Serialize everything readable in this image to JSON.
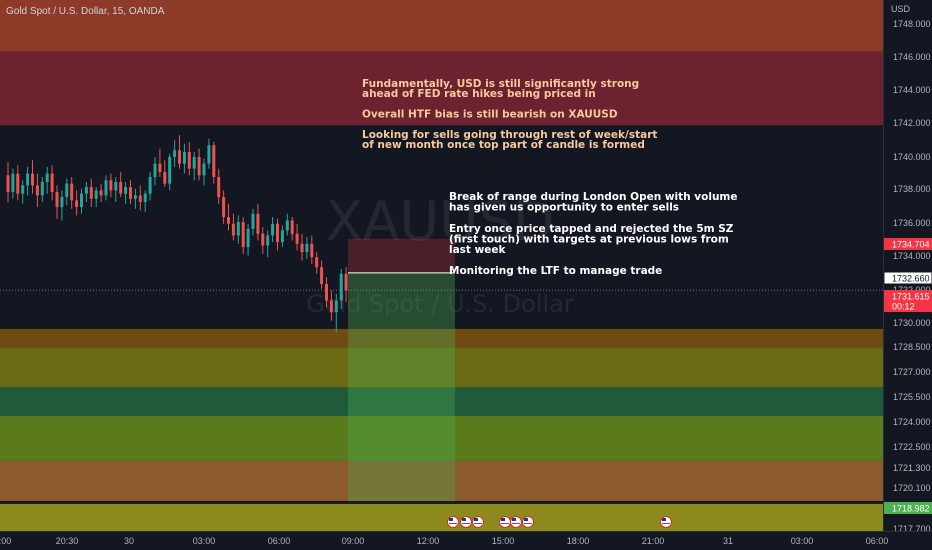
{
  "header": {
    "title": "Gold Spot / U.S. Dollar, 15, OANDA",
    "currency": "USD"
  },
  "watermark": {
    "symbol": "XAUUSD",
    "name": "Gold Spot / U.S. Dollar"
  },
  "price_scale": {
    "ticks": [
      "1748.000",
      "1746.000",
      "1744.000",
      "1742.000",
      "1740.000",
      "1738.000",
      "1736.000",
      "1734.000",
      "1732.000",
      "1730.000",
      "1728.500",
      "1727.000",
      "1725.500",
      "1724.000",
      "1722.500",
      "1721.300",
      "1720.100",
      "1717.700"
    ],
    "labels": [
      {
        "text": "1734.704",
        "color": "#f23645"
      },
      {
        "text": "1732.660",
        "color": "#ffffff"
      },
      {
        "text": "1731.615",
        "sub": "00:12",
        "color": "#f23645"
      },
      {
        "text": "1718.982",
        "color": "#4caf50"
      }
    ]
  },
  "time_axis": {
    "labels": [
      "18:00",
      "20:30",
      "30",
      "03:00",
      "06:00",
      "09:00",
      "12:00",
      "15:00",
      "18:00",
      "21:00",
      "31",
      "03:00",
      "06:00"
    ]
  },
  "annotations": {
    "fundamental": [
      "Fundamentally, USD is still significantly strong",
      "ahead of FED rate hikes being priced in",
      "",
      "Overall HTF bias is still bearish on XAUUSD",
      "",
      "Looking for sells going through rest of week/start",
      "of new month once top part of candle is formed"
    ],
    "entry": [
      "Break of range during London Open with volume",
      "has given us opportunity to enter sells",
      "",
      "Entry once price tapped and rejected the 5m SZ",
      "(first touch) with targets at previous lows from",
      "last week",
      "",
      "Monitoring the LTF to manage trade"
    ]
  },
  "colors": {
    "background": "#131722",
    "bull": "#26a69a",
    "bear": "#ef5350",
    "annotation_text": "#f7c99c",
    "entry_text": "#ffffff"
  },
  "chart_data": {
    "type": "candlestick",
    "title": "Gold Spot / U.S. Dollar, 15, OANDA",
    "price_range": [
      1717.2,
      1749.0
    ],
    "ohlc": [
      [
        1738.5,
        1739.3,
        1736.9,
        1737.5
      ],
      [
        1737.5,
        1738.9,
        1737.1,
        1738.6
      ],
      [
        1738.6,
        1739.1,
        1737.0,
        1737.4
      ],
      [
        1737.4,
        1738.2,
        1736.8,
        1737.9
      ],
      [
        1737.9,
        1739.0,
        1737.3,
        1738.6
      ],
      [
        1738.6,
        1739.4,
        1737.4,
        1737.9
      ],
      [
        1737.9,
        1738.6,
        1736.6,
        1737.3
      ],
      [
        1737.3,
        1738.4,
        1736.9,
        1738.1
      ],
      [
        1738.1,
        1739.0,
        1737.4,
        1738.6
      ],
      [
        1738.6,
        1739.1,
        1737.0,
        1737.5
      ],
      [
        1737.5,
        1737.9,
        1735.9,
        1736.6
      ],
      [
        1736.6,
        1737.6,
        1735.8,
        1737.2
      ],
      [
        1737.2,
        1738.3,
        1736.7,
        1738.0
      ],
      [
        1738.0,
        1738.4,
        1736.5,
        1737.0
      ],
      [
        1737.0,
        1737.6,
        1736.1,
        1736.6
      ],
      [
        1736.6,
        1737.7,
        1736.2,
        1737.4
      ],
      [
        1737.4,
        1738.1,
        1736.9,
        1737.8
      ],
      [
        1737.8,
        1738.3,
        1736.6,
        1737.1
      ],
      [
        1737.1,
        1737.8,
        1736.6,
        1737.6
      ],
      [
        1737.6,
        1738.0,
        1736.9,
        1737.3
      ],
      [
        1737.3,
        1738.5,
        1737.0,
        1738.2
      ],
      [
        1738.2,
        1738.6,
        1737.2,
        1737.6
      ],
      [
        1737.6,
        1738.4,
        1736.9,
        1738.1
      ],
      [
        1738.1,
        1738.7,
        1737.2,
        1737.4
      ],
      [
        1737.4,
        1738.1,
        1736.8,
        1737.8
      ],
      [
        1737.8,
        1738.2,
        1736.8,
        1737.1
      ],
      [
        1737.1,
        1737.7,
        1736.5,
        1737.3
      ],
      [
        1737.3,
        1737.9,
        1736.4,
        1736.9
      ],
      [
        1736.9,
        1737.6,
        1736.3,
        1737.4
      ],
      [
        1737.4,
        1738.7,
        1737.0,
        1738.4
      ],
      [
        1738.4,
        1739.6,
        1737.9,
        1739.2
      ],
      [
        1739.2,
        1740.1,
        1738.4,
        1738.7
      ],
      [
        1738.7,
        1739.4,
        1737.8,
        1738.0
      ],
      [
        1738.0,
        1739.8,
        1737.6,
        1739.6
      ],
      [
        1739.6,
        1740.6,
        1739.0,
        1740.0
      ],
      [
        1740.0,
        1740.9,
        1738.9,
        1739.2
      ],
      [
        1739.2,
        1740.4,
        1738.6,
        1739.9
      ],
      [
        1739.9,
        1740.5,
        1738.5,
        1738.9
      ],
      [
        1738.9,
        1739.9,
        1738.2,
        1739.6
      ],
      [
        1739.6,
        1740.1,
        1738.2,
        1738.5
      ],
      [
        1738.5,
        1739.5,
        1737.9,
        1739.2
      ],
      [
        1739.2,
        1740.7,
        1738.9,
        1740.3
      ],
      [
        1740.3,
        1740.5,
        1738.0,
        1738.4
      ],
      [
        1738.4,
        1738.9,
        1736.8,
        1737.2
      ],
      [
        1737.2,
        1737.6,
        1735.6,
        1736.0
      ],
      [
        1736.0,
        1736.8,
        1735.2,
        1735.6
      ],
      [
        1735.6,
        1736.2,
        1734.6,
        1734.9
      ],
      [
        1734.9,
        1736.1,
        1734.4,
        1735.7
      ],
      [
        1735.7,
        1736.0,
        1733.8,
        1734.2
      ],
      [
        1734.2,
        1735.6,
        1733.7,
        1735.3
      ],
      [
        1735.3,
        1736.5,
        1734.9,
        1736.2
      ],
      [
        1736.2,
        1736.8,
        1734.6,
        1735.0
      ],
      [
        1735.0,
        1735.4,
        1733.8,
        1734.3
      ],
      [
        1734.3,
        1735.2,
        1733.6,
        1734.9
      ],
      [
        1734.9,
        1736.0,
        1734.5,
        1735.6
      ],
      [
        1735.6,
        1735.9,
        1734.0,
        1734.5
      ],
      [
        1734.5,
        1735.5,
        1734.2,
        1735.2
      ],
      [
        1735.2,
        1736.2,
        1734.9,
        1735.8
      ],
      [
        1735.8,
        1736.0,
        1734.6,
        1735.0
      ],
      [
        1735.0,
        1735.6,
        1734.0,
        1734.4
      ],
      [
        1734.4,
        1735.0,
        1733.4,
        1733.9
      ],
      [
        1733.9,
        1734.8,
        1733.5,
        1734.4
      ],
      [
        1734.4,
        1734.9,
        1733.2,
        1733.6
      ],
      [
        1733.6,
        1733.9,
        1732.6,
        1733.0
      ],
      [
        1733.0,
        1733.4,
        1731.7,
        1732.0
      ],
      [
        1732.0,
        1732.4,
        1730.6,
        1731.0
      ],
      [
        1731.0,
        1731.6,
        1729.8,
        1730.3
      ],
      [
        1730.3,
        1731.4,
        1729.1,
        1731.0
      ],
      [
        1731.0,
        1732.9,
        1730.5,
        1732.6
      ],
      [
        1732.6,
        1733.0,
        1730.9,
        1731.6
      ]
    ],
    "zones": [
      {
        "label": "supply-zone-htf",
        "from": 1745.9,
        "to": 1741.5
      },
      {
        "label": "demand-zone",
        "from": 1729.3,
        "to": 1728.2
      },
      {
        "label": "target-zone-1",
        "from": 1728.2,
        "to": 1725.8
      },
      {
        "label": "target-zone-2",
        "from": 1724.1,
        "to": 1721.4
      },
      {
        "label": "target-zone-3",
        "from": 1721.4,
        "to": 1719.0
      }
    ],
    "position": {
      "type": "short",
      "entry": 1732.66,
      "stop": 1734.704,
      "target": 1718.982
    },
    "current_price": 1731.615
  }
}
